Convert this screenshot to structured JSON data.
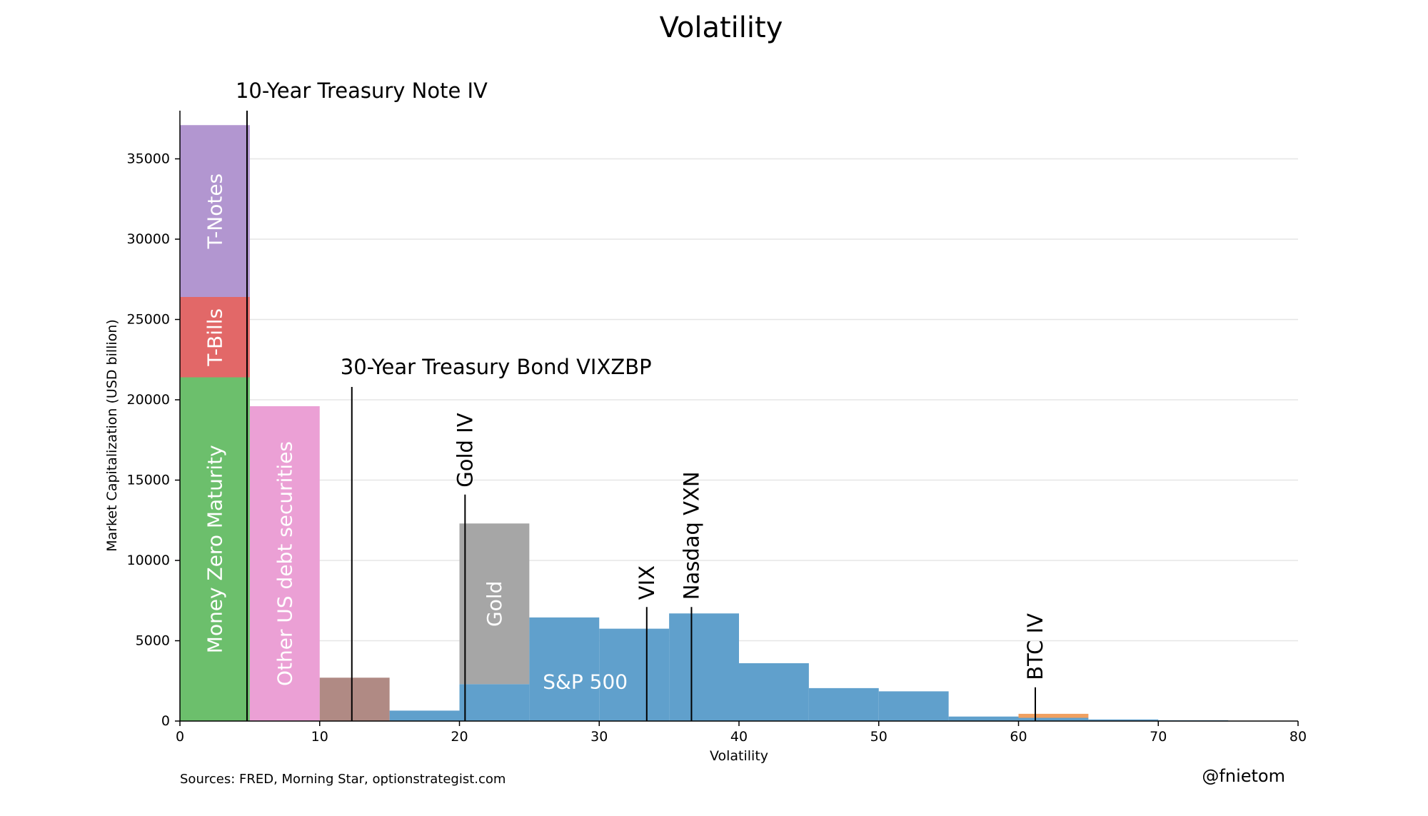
{
  "chart_data": {
    "type": "bar",
    "title": "Volatility",
    "xlabel": "Volatility",
    "ylabel": "Market Capitalization (USD billion)",
    "xlim": [
      0,
      80
    ],
    "ylim": [
      0,
      38000
    ],
    "xticks": [
      0,
      10,
      20,
      30,
      40,
      50,
      60,
      70,
      80
    ],
    "yticks": [
      0,
      5000,
      10000,
      15000,
      20000,
      25000,
      30000,
      35000
    ],
    "grid": "horizontal",
    "source": "Sources: FRED,  Morning Star, optionstrategist.com",
    "watermark": "@fnietom",
    "bars": [
      {
        "x0": 0,
        "x1": 5,
        "y0": 0,
        "y1": 21400,
        "color": "#6cbf6c",
        "label": "Money Zero Maturity"
      },
      {
        "x0": 0,
        "x1": 5,
        "y0": 21400,
        "y1": 26400,
        "color": "#e26868",
        "label": "T-Bills"
      },
      {
        "x0": 0,
        "x1": 5,
        "y0": 26400,
        "y1": 37100,
        "color": "#b296d0",
        "label": "T-Notes"
      },
      {
        "x0": 5,
        "x1": 10,
        "y0": 0,
        "y1": 19600,
        "color": "#eba0d5",
        "label": "Other US debt securities"
      },
      {
        "x0": 10,
        "x1": 15,
        "y0": 0,
        "y1": 2700,
        "color": "#b08a84",
        "label": ""
      },
      {
        "x0": 15,
        "x1": 20,
        "y0": 0,
        "y1": 650,
        "color": "#60a0cc",
        "label": ""
      },
      {
        "x0": 20,
        "x1": 25,
        "y0": 0,
        "y1": 2300,
        "color": "#60a0cc",
        "label": ""
      },
      {
        "x0": 20,
        "x1": 25,
        "y0": 2300,
        "y1": 12300,
        "color": "#a6a6a6",
        "label": "Gold"
      },
      {
        "x0": 25,
        "x1": 30,
        "y0": 0,
        "y1": 6450,
        "color": "#60a0cc",
        "label": ""
      },
      {
        "x0": 30,
        "x1": 35,
        "y0": 0,
        "y1": 5750,
        "color": "#60a0cc",
        "label": ""
      },
      {
        "x0": 35,
        "x1": 40,
        "y0": 0,
        "y1": 6700,
        "color": "#60a0cc",
        "label": ""
      },
      {
        "x0": 40,
        "x1": 45,
        "y0": 0,
        "y1": 3600,
        "color": "#60a0cc",
        "label": ""
      },
      {
        "x0": 45,
        "x1": 50,
        "y0": 0,
        "y1": 2050,
        "color": "#60a0cc",
        "label": ""
      },
      {
        "x0": 50,
        "x1": 55,
        "y0": 0,
        "y1": 1850,
        "color": "#60a0cc",
        "label": ""
      },
      {
        "x0": 55,
        "x1": 60,
        "y0": 0,
        "y1": 280,
        "color": "#60a0cc",
        "label": ""
      },
      {
        "x0": 60,
        "x1": 65,
        "y0": 0,
        "y1": 200,
        "color": "#60a0cc",
        "label": ""
      },
      {
        "x0": 60,
        "x1": 65,
        "y0": 200,
        "y1": 450,
        "color": "#f0a060",
        "label": ""
      },
      {
        "x0": 65,
        "x1": 70,
        "y0": 0,
        "y1": 100,
        "color": "#60a0cc",
        "label": ""
      },
      {
        "x0": 70,
        "x1": 75,
        "y0": 0,
        "y1": 50,
        "color": "#60a0cc",
        "label": ""
      }
    ],
    "sp500_label": {
      "text": "S&P 500",
      "x": 29,
      "y": 2450
    },
    "vlines": [
      {
        "x": 4.8,
        "top": 38000,
        "label": "10-Year Treasury Note IV",
        "orient": "horizontal"
      },
      {
        "x": 12.3,
        "top": 20800,
        "label": "30-Year Treasury Bond VIXZBP",
        "orient": "horizontal"
      },
      {
        "x": 20.4,
        "top": 14100,
        "label": "Gold IV",
        "orient": "vertical"
      },
      {
        "x": 33.4,
        "top": 7100,
        "label": "VIX",
        "orient": "vertical"
      },
      {
        "x": 36.6,
        "top": 7100,
        "label": "Nasdaq VXN",
        "orient": "vertical"
      },
      {
        "x": 61.2,
        "top": 2100,
        "label": "BTC IV",
        "orient": "vertical"
      }
    ]
  }
}
